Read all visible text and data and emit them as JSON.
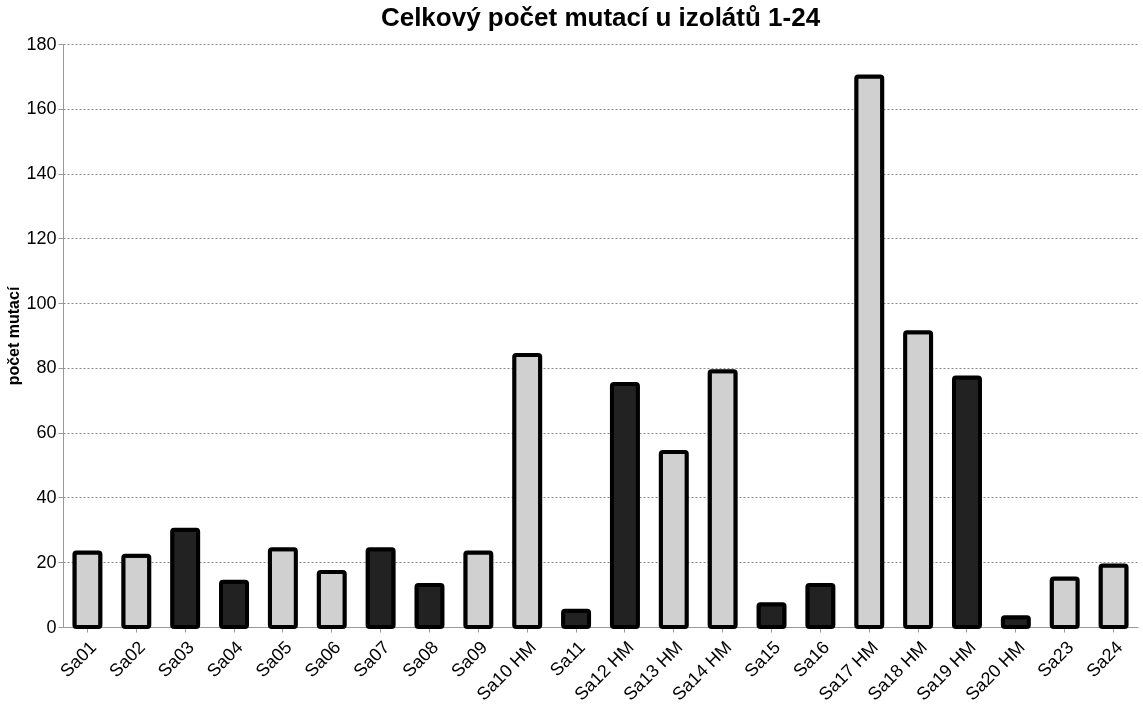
{
  "chart_data": {
    "type": "bar",
    "title": "Celkový počet mutací u izolátů 1-24",
    "ylabel": "počet mutací",
    "categories": [
      "Sa01",
      "Sa02",
      "Sa03",
      "Sa04",
      "Sa05",
      "Sa06",
      "Sa07",
      "Sa08",
      "Sa09",
      "Sa10 HM",
      "Sa11",
      "Sa12 HM",
      "Sa13 HM",
      "Sa14 HM",
      "Sa15",
      "Sa16",
      "Sa17 HM",
      "Sa18 HM",
      "Sa19 HM",
      "Sa20 HM",
      "Sa23",
      "Sa24"
    ],
    "values": [
      23,
      22,
      30,
      14,
      24,
      17,
      24,
      13,
      23,
      84,
      5,
      75,
      54,
      79,
      7,
      13,
      170,
      91,
      77,
      3,
      15,
      19
    ],
    "colors": [
      "#d0d0d0",
      "#d0d0d0",
      "#222222",
      "#222222",
      "#d0d0d0",
      "#d0d0d0",
      "#222222",
      "#222222",
      "#d0d0d0",
      "#d0d0d0",
      "#222222",
      "#222222",
      "#d0d0d0",
      "#d0d0d0",
      "#222222",
      "#222222",
      "#d0d0d0",
      "#d0d0d0",
      "#222222",
      "#222222",
      "#d0d0d0",
      "#d0d0d0"
    ],
    "ylim": [
      0,
      180
    ],
    "yticks": [
      0,
      20,
      40,
      60,
      80,
      100,
      120,
      140,
      160,
      180
    ],
    "grid": "y"
  }
}
